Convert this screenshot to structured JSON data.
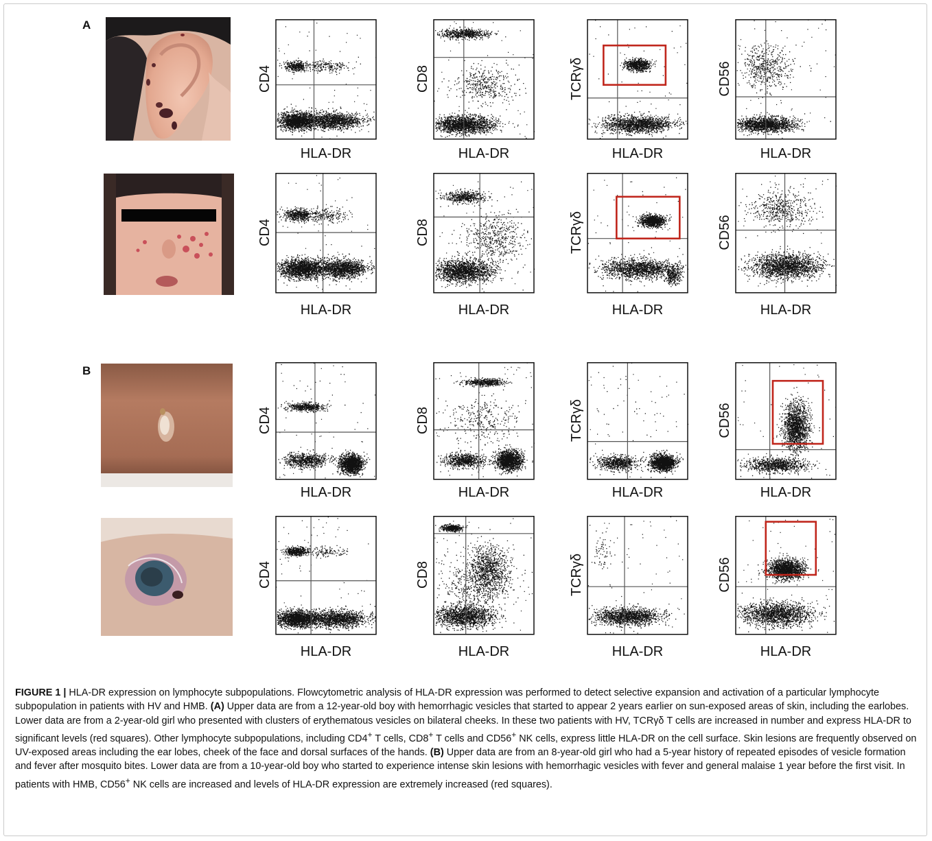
{
  "panels": [
    {
      "letter": "A"
    },
    {
      "letter": "B"
    }
  ],
  "rows": [
    {
      "photo": "ear-lesion-photo",
      "plots": [
        {
          "ylabel": "CD4",
          "xlabel": "HLA-DR",
          "gated": false
        },
        {
          "ylabel": "CD8",
          "xlabel": "HLA-DR",
          "gated": false
        },
        {
          "ylabel": "TCRγδ",
          "xlabel": "HLA-DR",
          "gated": true
        },
        {
          "ylabel": "CD56",
          "xlabel": "HLA-DR",
          "gated": false
        }
      ]
    },
    {
      "photo": "face-lesion-photo",
      "plots": [
        {
          "ylabel": "CD4",
          "xlabel": "HLA-DR",
          "gated": false
        },
        {
          "ylabel": "CD8",
          "xlabel": "HLA-DR",
          "gated": false
        },
        {
          "ylabel": "TCRγδ",
          "xlabel": "HLA-DR",
          "gated": true
        },
        {
          "ylabel": "CD56",
          "xlabel": "HLA-DR",
          "gated": false
        }
      ]
    },
    {
      "photo": "arm-vesicle-photo",
      "plots": [
        {
          "ylabel": "CD4",
          "xlabel": "HLA-DR",
          "gated": false
        },
        {
          "ylabel": "CD8",
          "xlabel": "HLA-DR",
          "gated": false
        },
        {
          "ylabel": "TCRγδ",
          "xlabel": "HLA-DR",
          "gated": false
        },
        {
          "ylabel": "CD56",
          "xlabel": "HLA-DR",
          "gated": true
        }
      ]
    },
    {
      "photo": "skin-ulcer-photo",
      "plots": [
        {
          "ylabel": "CD4",
          "xlabel": "HLA-DR",
          "gated": false
        },
        {
          "ylabel": "CD8",
          "xlabel": "HLA-DR",
          "gated": false
        },
        {
          "ylabel": "TCRγδ",
          "xlabel": "HLA-DR",
          "gated": false
        },
        {
          "ylabel": "CD56",
          "xlabel": "HLA-DR",
          "gated": true
        }
      ]
    }
  ],
  "caption": {
    "label": "FIGURE 1 |",
    "title": " HLA-DR expression on lymphocyte subpopulations. Flowcytometric analysis of HLA-DR expression was performed to detect selective expansion and activation of a particular lymphocyte subpopulation in patients with HV and HMB. ",
    "a_label": "(A)",
    "a_text1": " Upper data are from a 12-year-old boy with hemorrhagic vesicles that started to appear 2 years earlier on sun-exposed areas of skin, including the earlobes. Lower data are from a 2-year-old girl who presented with clusters of erythematous vesicles on bilateral cheeks. In these two patients with HV, TCRγδ T cells are increased in number and express HLA-DR to significant levels (red squares). Other lymphocyte subpopulations, including CD4",
    "sup1": "+",
    "a_text2": " T cells, CD8",
    "sup2": "+",
    "a_text3": " T cells and CD56",
    "sup3": "+",
    "a_text4": " NK cells, express little HLA-DR on the cell surface. Skin lesions are frequently observed on UV-exposed areas including the ear lobes, cheek of the face and dorsal surfaces of the hands. ",
    "b_label": "(B)",
    "b_text1": " Upper data are from an 8-year-old girl who had a 5-year history of repeated episodes of vesicle formation and fever after mosquito bites. Lower data are from a 10-year-old boy who started to experience intense skin lesions with hemorrhagic vesicles with fever and general malaise 1 year before the first visit. In patients with HMB, CD56",
    "sup4": "+",
    "b_text2": " NK cells are increased and levels of HLA-DR expression are extremely increased (red squares)."
  },
  "colors": {
    "gate": "#c0261c",
    "dots": "#111111",
    "quadrant": "#555555"
  }
}
